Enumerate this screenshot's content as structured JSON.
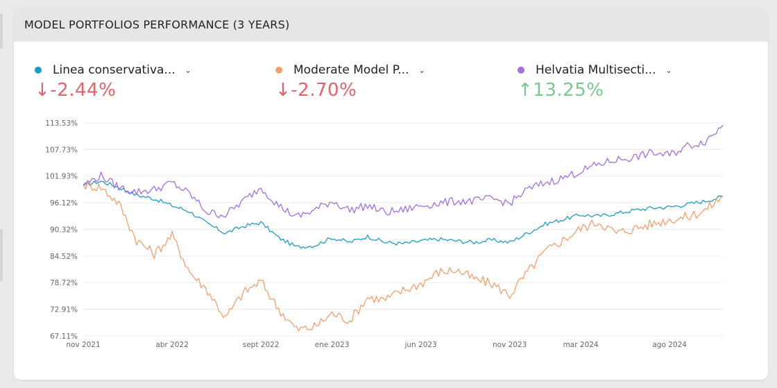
{
  "card": {
    "title": "MODEL PORTFOLIOS PERFORMANCE (3 YEARS)"
  },
  "portfolios": [
    {
      "name": "Linea conservativa...",
      "change": "-2.44%",
      "arrow": "↓",
      "direction": "down",
      "color": "#1f9bc8"
    },
    {
      "name": "Moderate Model P...",
      "change": "-2.70%",
      "arrow": "↓",
      "direction": "down",
      "color": "#f3a06f"
    },
    {
      "name": "Helvatia Multisecti...",
      "change": "13.25%",
      "arrow": "↑",
      "direction": "up",
      "color": "#a46fe0"
    }
  ],
  "chart_data": {
    "type": "line",
    "ylim": [
      67.11,
      113.53
    ],
    "yticks": [
      "113.53%",
      "107.73%",
      "101.93%",
      "96.12%",
      "90.32%",
      "84.52%",
      "78.72%",
      "72.91%",
      "67.11%"
    ],
    "ytick_values": [
      113.53,
      107.73,
      101.93,
      96.12,
      90.32,
      84.52,
      78.72,
      72.91,
      67.11
    ],
    "xticks": [
      "nov 2021",
      "abr 2022",
      "sept 2022",
      "ene 2023",
      "jun 2023",
      "nov 2023",
      "mar 2024",
      "ago 2024"
    ],
    "x": [
      "nov 2021",
      "dic 2021",
      "ene 2022",
      "feb 2022",
      "mar 2022",
      "abr 2022",
      "may 2022",
      "jun 2022",
      "jul 2022",
      "ago 2022",
      "sept 2022",
      "oct 2022",
      "nov 2022",
      "dic 2022",
      "ene 2023",
      "feb 2023",
      "mar 2023",
      "abr 2023",
      "may 2023",
      "jun 2023",
      "jul 2023",
      "ago 2023",
      "sept 2023",
      "oct 2023",
      "nov 2023",
      "dic 2023",
      "ene 2024",
      "feb 2024",
      "mar 2024",
      "abr 2024",
      "may 2024",
      "jun 2024",
      "jul 2024",
      "ago 2024",
      "sept 2024",
      "oct 2024",
      "nov 2024"
    ],
    "grid": true,
    "series": [
      {
        "name": "Linea conservativa...",
        "color": "#1f9bc8",
        "values": [
          100.0,
          100.8,
          99.5,
          97.8,
          97.0,
          95.5,
          94.2,
          91.5,
          89.5,
          91.0,
          91.8,
          88.5,
          86.5,
          86.8,
          88.5,
          87.5,
          88.8,
          87.5,
          87.2,
          87.8,
          88.2,
          87.8,
          87.5,
          88.0,
          87.5,
          89.5,
          91.5,
          92.5,
          93.5,
          93.2,
          93.8,
          94.5,
          95.0,
          95.2,
          95.8,
          96.5,
          97.5
        ]
      },
      {
        "name": "Moderate Model P...",
        "color": "#f3a06f",
        "values": [
          100.0,
          99.5,
          96.0,
          88.0,
          85.0,
          89.0,
          81.0,
          77.0,
          71.0,
          76.5,
          79.0,
          73.0,
          68.5,
          69.0,
          72.0,
          70.5,
          75.5,
          75.0,
          77.0,
          78.5,
          81.0,
          81.5,
          79.5,
          78.5,
          76.0,
          81.0,
          85.5,
          88.0,
          90.5,
          92.0,
          89.5,
          90.5,
          91.5,
          92.5,
          93.0,
          94.5,
          97.5
        ]
      },
      {
        "name": "Helvatia Multisecti...",
        "color": "#a46fe0",
        "values": [
          100.0,
          102.0,
          99.5,
          98.5,
          99.0,
          100.5,
          98.0,
          94.0,
          93.5,
          96.5,
          99.5,
          95.5,
          93.0,
          94.5,
          96.5,
          94.5,
          95.5,
          94.0,
          94.5,
          95.5,
          96.0,
          96.5,
          96.5,
          97.0,
          96.0,
          99.0,
          100.5,
          101.5,
          103.0,
          104.5,
          105.5,
          106.0,
          107.0,
          106.5,
          108.5,
          109.5,
          113.0
        ]
      }
    ]
  }
}
